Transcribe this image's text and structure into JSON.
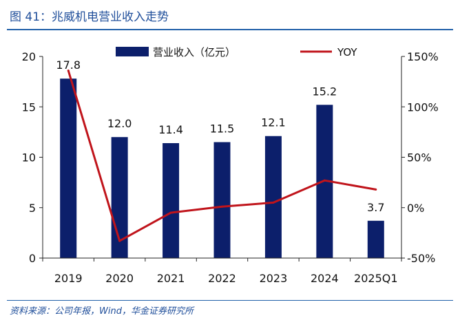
{
  "header": {
    "title": "图 41：兆威机电营业收入走势"
  },
  "footer": {
    "source": "资料来源：公司年报，Wind，华金证券研究所"
  },
  "colors": {
    "bar": "#0c1f6b",
    "line": "#c0141b",
    "title": "#1f4e9a",
    "rule": "#1f5fa8",
    "axis": "#222222"
  },
  "chart_data": {
    "type": "bar",
    "title": "",
    "categories": [
      "2019",
      "2020",
      "2021",
      "2022",
      "2023",
      "2024",
      "2025Q1"
    ],
    "series": [
      {
        "name": "营业收入（亿元）",
        "kind": "bar",
        "axis": "left",
        "values": [
          17.8,
          12.0,
          11.4,
          11.5,
          12.1,
          15.2,
          3.7
        ],
        "labels": [
          "17.8",
          "12.0",
          "11.4",
          "11.5",
          "12.1",
          "15.2",
          "3.7"
        ]
      },
      {
        "name": "YOY",
        "kind": "line",
        "axis": "right",
        "unit": "%",
        "values": [
          136,
          -33,
          -5,
          1,
          5,
          27,
          18
        ]
      }
    ],
    "left_axis": {
      "ylim": [
        0,
        20
      ],
      "ticks": [
        0,
        5,
        10,
        15,
        20
      ],
      "tick_labels": [
        "0",
        "5",
        "10",
        "15",
        "20"
      ]
    },
    "right_axis": {
      "ylim": [
        -50,
        150
      ],
      "ticks": [
        -50,
        0,
        50,
        100,
        150
      ],
      "tick_labels": [
        "-50%",
        "0%",
        "50%",
        "100%",
        "150%"
      ]
    },
    "legend_position": "top-center",
    "grid": false
  }
}
